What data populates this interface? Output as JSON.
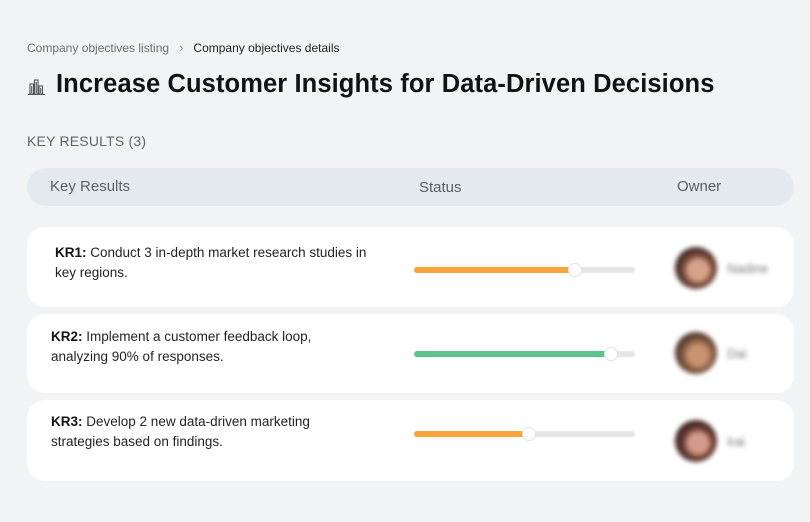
{
  "breadcrumb": {
    "parent": "Company objectives listing",
    "separator": "›",
    "current": "Company objectives details"
  },
  "header": {
    "icon": "buildings-chart-icon",
    "title": "Increase Customer Insights for Data-Driven Decisions"
  },
  "key_results_section": {
    "label": "KEY RESULTS (3)",
    "count": 3
  },
  "table": {
    "columns": [
      "Key Results",
      "Status",
      "Owner"
    ]
  },
  "key_results": [
    {
      "code": "KR1:",
      "description": " Conduct 3 in-depth market research studies in key regions.",
      "progress_percent": 73,
      "progress_color": "#f9a43a",
      "owner": {
        "name": "Nadine",
        "avatar_colors": [
          "#7a4a3a",
          "#2c1e1c",
          "#d9a28a"
        ]
      }
    },
    {
      "code": "KR2:",
      "description": " Implement a customer feedback loop, analyzing 90% of responses.",
      "progress_percent": 89,
      "progress_color": "#5cc58c",
      "owner": {
        "name": "Dai",
        "avatar_colors": [
          "#8b5e45",
          "#3a2620",
          "#c8946f"
        ]
      }
    },
    {
      "code": "KR3:",
      "description": " Develop 2 new data-driven marketing strategies based on findings.",
      "progress_percent": 52,
      "progress_color": "#f9a43a",
      "owner": {
        "name": "Irai",
        "avatar_colors": [
          "#6b3d33",
          "#2e1d1b",
          "#d49a8a"
        ]
      }
    }
  ],
  "colors": {
    "background": "#f2f3f5",
    "table_header_bg": "#e4e9f0",
    "card_bg": "#ffffff",
    "progress_track": "#e6e6e6",
    "in_progress": "#f9a43a",
    "on_track": "#5cc58c"
  }
}
